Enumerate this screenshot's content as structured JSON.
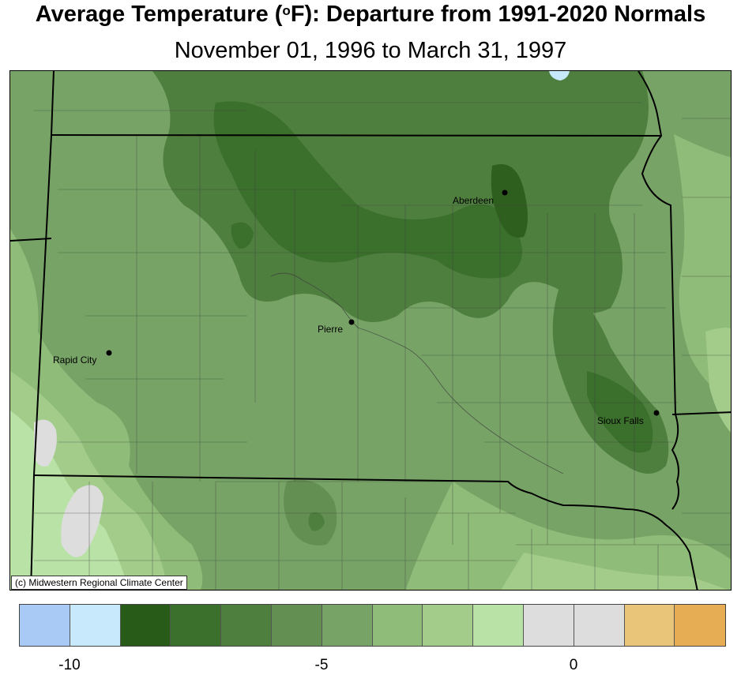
{
  "header": {
    "title_pre": "Average Temperature (",
    "title_deg": "o",
    "title_post": "F): Departure from 1991-2020 Normals",
    "subtitle": "November 01, 1996 to March 31, 1997"
  },
  "map": {
    "region": "South Dakota",
    "cities": [
      {
        "name": "Aberdeen"
      },
      {
        "name": "Pierre"
      },
      {
        "name": "Rapid City"
      },
      {
        "name": "Sioux Falls"
      }
    ],
    "credit": "(c) Midwestern Regional Climate Center"
  },
  "legend": {
    "colors": [
      "#a9caf5",
      "#c8e9fb",
      "#285a18",
      "#3b6f2c",
      "#4f7f3f",
      "#648f52",
      "#77a466",
      "#8fbc78",
      "#a3cc8b",
      "#b9e2a6",
      "#dddddd",
      "#dddddd",
      "#e9c579",
      "#e7ad55"
    ],
    "tick_labels": [
      "-10",
      "-5",
      "0"
    ]
  },
  "colors": {
    "departure_-9": "#2f5f1f",
    "departure_-8": "#3b6f2c",
    "departure_-7": "#4f7f3f",
    "departure_-6": "#648f52",
    "departure_-5": "#77a466",
    "departure_-4": "#8fbc78",
    "departure_-3": "#a3cc8b",
    "departure_-2": "#b9e2a6",
    "departure_-1": "#dddddd",
    "departure_-10": "#c8e9fb"
  }
}
